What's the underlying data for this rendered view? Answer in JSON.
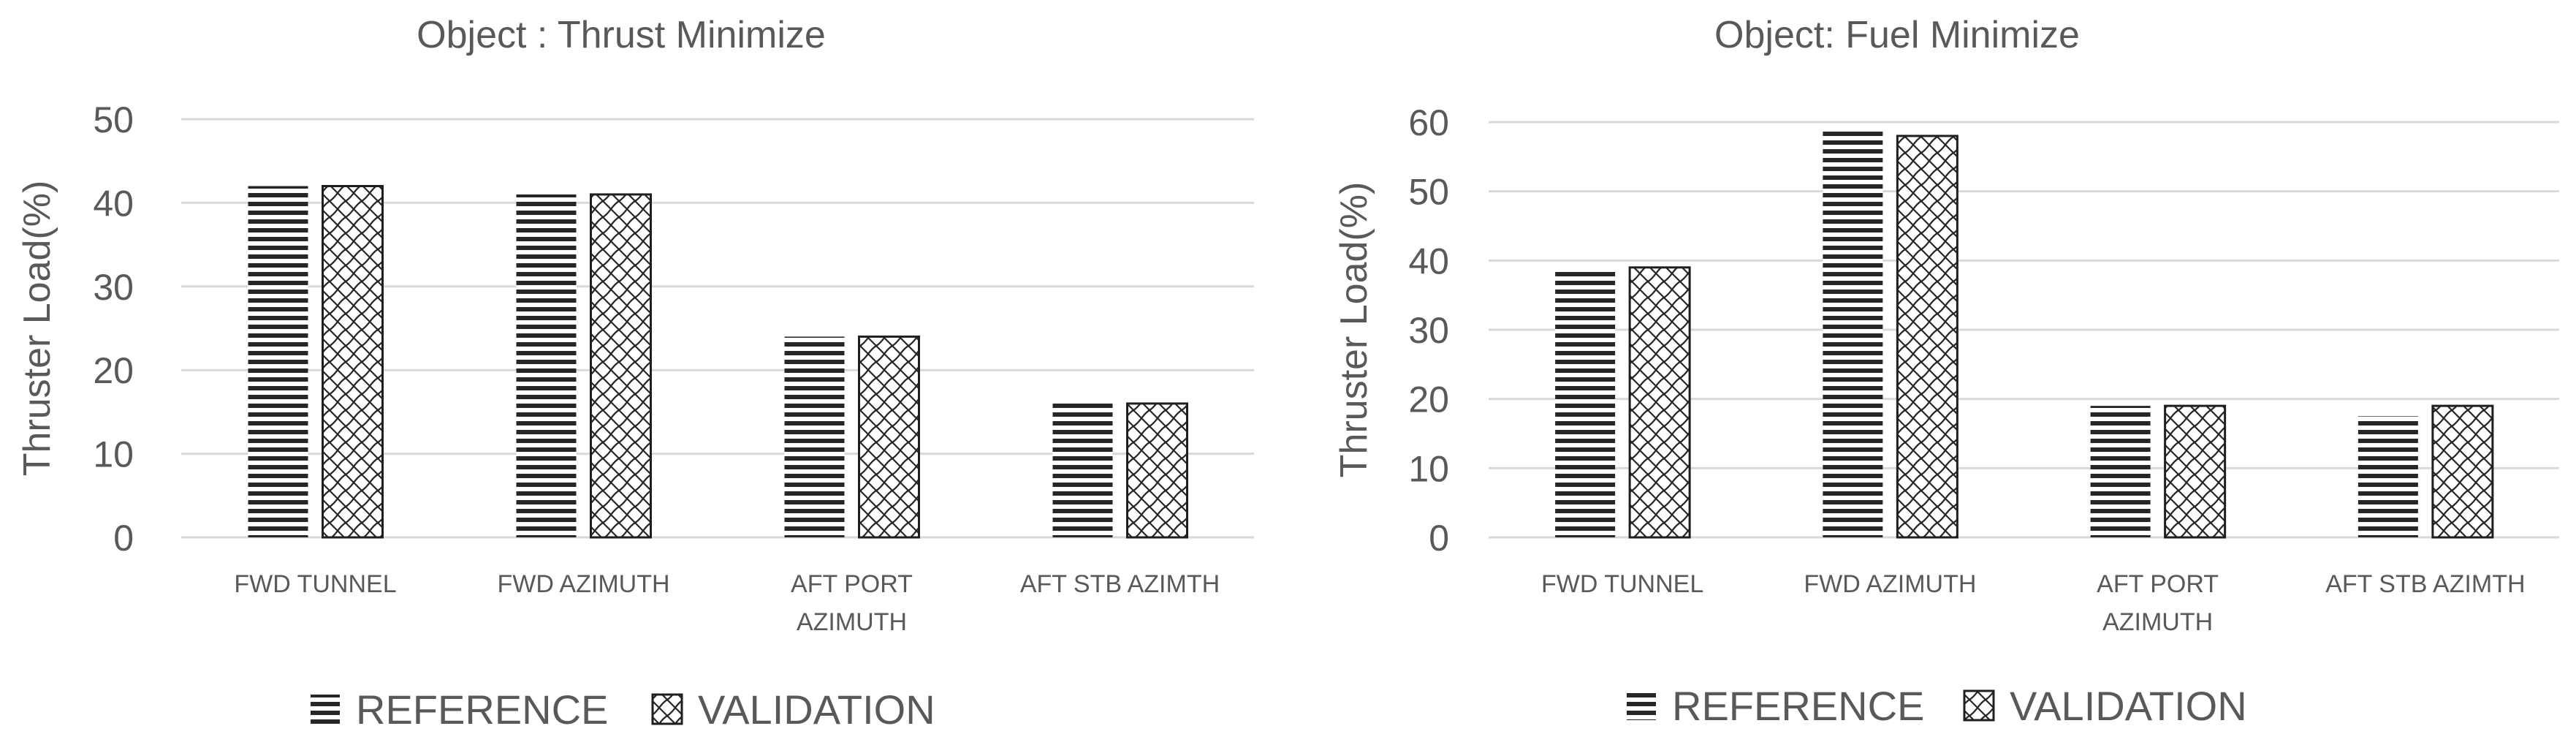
{
  "colors": {
    "axis_text": "#595959",
    "grid": "#d9d9d9",
    "bar_stroke": "#1f1f1f",
    "pattern_ink": "#262626",
    "background": "#ffffff"
  },
  "chart_data": [
    {
      "type": "bar",
      "title": "Object : Thrust Minimize",
      "xlabel": "",
      "ylabel": "Thruster Load(%)",
      "ylim": [
        0,
        50
      ],
      "yticks": [
        0,
        10,
        20,
        30,
        40,
        50
      ],
      "grid": true,
      "legend": "bottom",
      "categories": [
        [
          "FWD TUNNEL"
        ],
        [
          "FWD AZIMUTH"
        ],
        [
          "AFT PORT",
          "AZIMUTH"
        ],
        [
          "AFT STB AZIMTH"
        ]
      ],
      "series": [
        {
          "name": "REFERENCE",
          "pattern": "horizontal-lines",
          "values": [
            42,
            41,
            24,
            16
          ]
        },
        {
          "name": "VALIDATION",
          "pattern": "crosshatch-wave",
          "values": [
            42,
            41,
            24,
            16
          ]
        }
      ]
    },
    {
      "type": "bar",
      "title": "Object: Fuel Minimize",
      "xlabel": "",
      "ylabel": "Thruster Load(%)",
      "ylim": [
        0,
        60
      ],
      "yticks": [
        0,
        10,
        20,
        30,
        40,
        50,
        60
      ],
      "grid": true,
      "legend": "bottom",
      "categories": [
        [
          "FWD TUNNEL"
        ],
        [
          "FWD AZIMUTH"
        ],
        [
          "AFT PORT",
          "AZIMUTH"
        ],
        [
          "AFT STB AZIMTH"
        ]
      ],
      "series": [
        {
          "name": "REFERENCE",
          "pattern": "horizontal-lines",
          "values": [
            38.5,
            59,
            19,
            17.5
          ]
        },
        {
          "name": "VALIDATION",
          "pattern": "crosshatch-wave",
          "values": [
            39,
            58,
            19,
            19
          ]
        }
      ]
    }
  ]
}
